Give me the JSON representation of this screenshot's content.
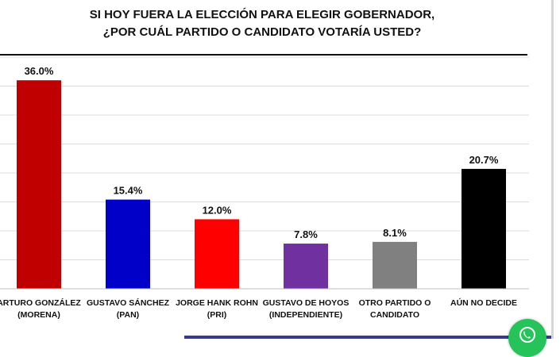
{
  "chart_data": {
    "type": "bar",
    "title": [
      "SI HOY FUERA LA ELECCIÓN PARA ELEGIR GOBERNADOR,",
      "¿POR CUÁL PARTIDO O CANDIDATO VOTARÍA USTED?"
    ],
    "categories": [
      [
        "ARTURO GONZÁLEZ",
        "(MORENA)"
      ],
      [
        "GUSTAVO SÁNCHEZ",
        "(PAN)"
      ],
      [
        "JORGE HANK ROHN",
        "(PRI)"
      ],
      [
        "GUSTAVO DE HOYOS",
        "(INDEPENDIENTE)"
      ],
      [
        "OTRO PARTIDO O",
        "CANDIDATO"
      ],
      [
        "AÚN NO DECIDE",
        ""
      ]
    ],
    "values": [
      36.0,
      15.4,
      12.0,
      7.8,
      8.1,
      20.7
    ],
    "value_labels": [
      "36.0%",
      "15.4%",
      "12.0%",
      "7.8%",
      "8.1%",
      "20.7%"
    ],
    "colors": [
      "#c00000",
      "#0000c8",
      "#ff0000",
      "#7030a0",
      "#808080",
      "#000000"
    ],
    "ylim": [
      0,
      40
    ],
    "grid": true
  },
  "icons": {
    "chat": "whatsapp-icon"
  },
  "colors": {
    "chat_button": "#25c35a",
    "bottom_bar": "#3a3a8c"
  }
}
